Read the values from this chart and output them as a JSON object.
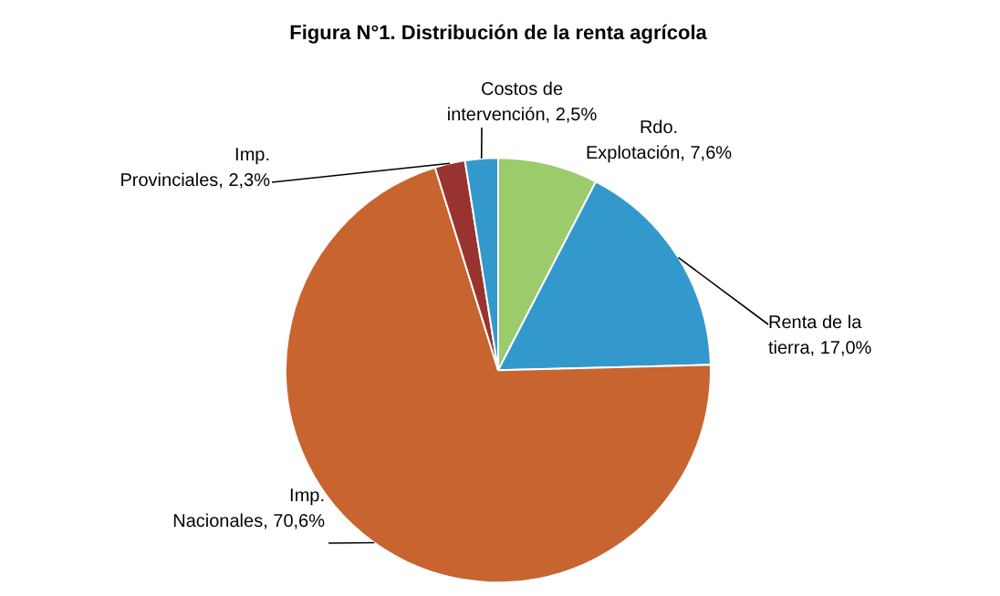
{
  "chart_data": {
    "type": "pie",
    "title": "Figura N°1. Distribución de la renta agrícola",
    "categories": [
      "Rdo. Explotación",
      "Renta de la tierra",
      "Imp. Nacionales",
      "Imp. Provinciales",
      "Costos de intervención"
    ],
    "values": [
      7.6,
      17.0,
      70.6,
      2.3,
      2.5
    ],
    "value_labels": [
      "7,6%",
      "17,0%",
      "70,6%",
      "2,3%",
      "2,5%"
    ],
    "colors": [
      "#9bcb6b",
      "#3399cc",
      "#c8642f",
      "#99332f",
      "#3399cc"
    ],
    "legend": false
  }
}
